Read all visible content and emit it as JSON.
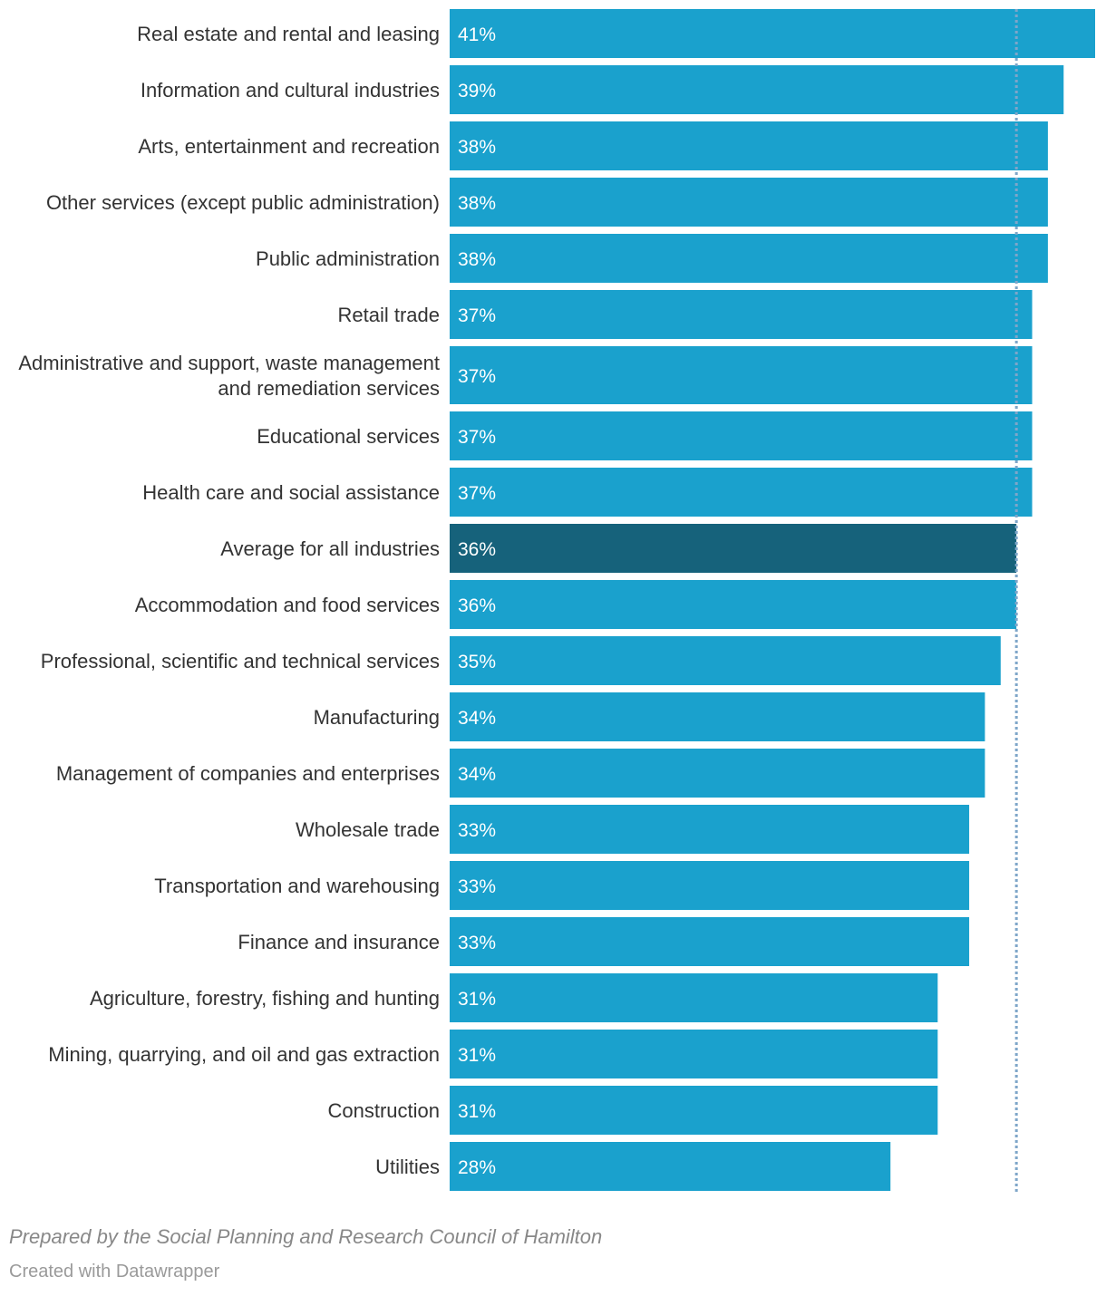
{
  "chart_data": {
    "type": "bar",
    "orientation": "horizontal",
    "categories": [
      "Real estate and rental and leasing",
      "Information and cultural industries",
      "Arts, entertainment and recreation",
      "Other services (except public administration)",
      "Public administration",
      "Retail trade",
      "Administrative and support, waste management and remediation services",
      "Educational services",
      "Health care and social assistance",
      "Average for all industries",
      "Accommodation and food services",
      "Professional, scientific and technical services",
      "Manufacturing",
      "Management of companies and enterprises",
      "Wholesale trade",
      "Transportation and warehousing",
      "Finance and insurance",
      "Agriculture, forestry, fishing and hunting",
      "Mining, quarrying, and oil and gas extraction",
      "Construction",
      "Utilities"
    ],
    "values": [
      41,
      39,
      38,
      38,
      38,
      37,
      37,
      37,
      37,
      36,
      36,
      35,
      34,
      34,
      33,
      33,
      33,
      31,
      31,
      31,
      28
    ],
    "value_labels": [
      "41%",
      "39%",
      "38%",
      "38%",
      "38%",
      "37%",
      "37%",
      "37%",
      "37%",
      "36%",
      "36%",
      "35%",
      "34%",
      "34%",
      "33%",
      "33%",
      "33%",
      "31%",
      "31%",
      "31%",
      "28%"
    ],
    "highlight_category": "Average for all industries",
    "reference_line_value": 36,
    "xlim": [
      0,
      41
    ],
    "unit": "%",
    "colors": {
      "bar": "#1aa1cd",
      "highlight": "#16627b",
      "value_label": "#ffffff",
      "reference_line": "#7fa6c9"
    }
  },
  "footer": {
    "notes": "Prepared by the Social Planning and Research Council of Hamilton",
    "credit": "Created with Datawrapper"
  }
}
